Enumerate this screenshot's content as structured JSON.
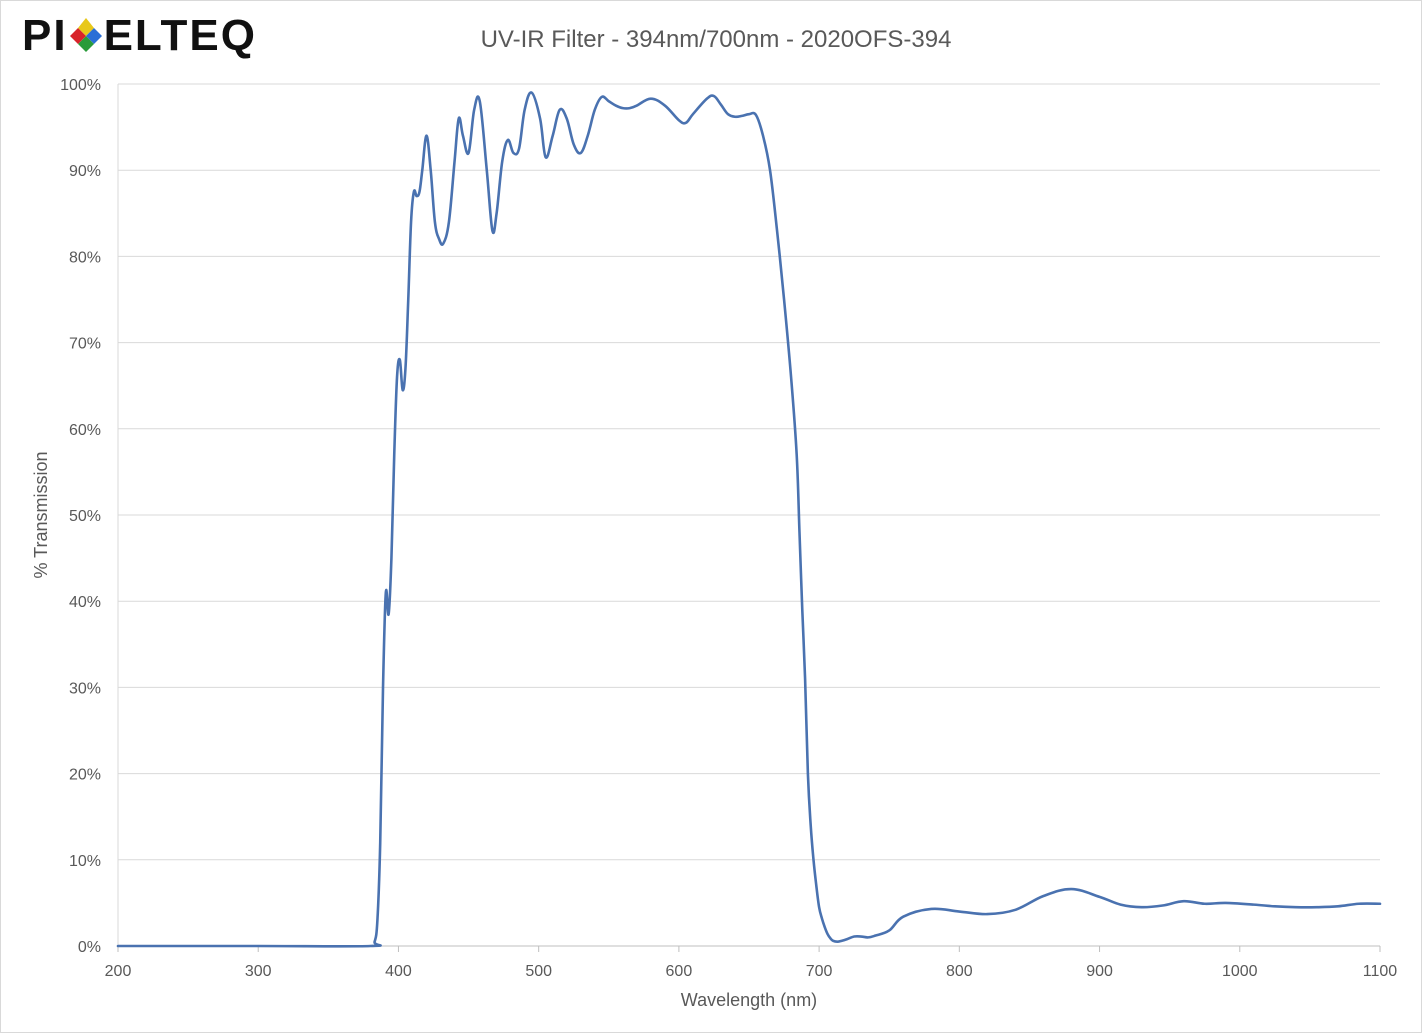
{
  "logo": {
    "brand": "PIXELTEQ",
    "part1": "PI",
    "part3": "ELTEQ"
  },
  "colors": {
    "series": "#4a72b0",
    "grid": "#d9d9d9",
    "text": "#595959"
  },
  "chart_data": {
    "type": "line",
    "title": "UV-IR Filter - 394nm/700nm - 2020OFS-394",
    "xlabel": "Wavelength (nm)",
    "ylabel": "% Transmission",
    "xlim": [
      200,
      1100
    ],
    "ylim": [
      0,
      100
    ],
    "x_ticks": [
      200,
      300,
      400,
      500,
      600,
      700,
      800,
      900,
      1000,
      1100
    ],
    "y_ticks": [
      0,
      10,
      20,
      30,
      40,
      50,
      60,
      70,
      80,
      90,
      100
    ],
    "y_tick_labels": [
      "0%",
      "10%",
      "20%",
      "30%",
      "40%",
      "50%",
      "60%",
      "70%",
      "80%",
      "90%",
      "100%"
    ],
    "grid": true,
    "legend": "none",
    "series": [
      {
        "x": [
          200,
          300,
          380,
          383,
          385,
          387,
          389,
          391,
          393,
          395,
          397,
          399,
          401,
          403,
          405,
          407,
          409,
          411,
          413,
          415,
          417,
          420,
          423,
          426,
          429,
          432,
          436,
          440,
          443,
          446,
          450,
          454,
          458,
          463,
          467,
          470,
          474,
          478,
          482,
          486,
          490,
          495,
          501,
          505,
          510,
          515,
          520,
          525,
          530,
          535,
          540,
          545,
          550,
          555,
          560,
          565,
          570,
          580,
          590,
          600,
          605,
          610,
          620,
          625,
          630,
          635,
          640,
          645,
          650,
          655,
          660,
          665,
          670,
          675,
          680,
          684,
          686,
          688,
          690,
          692,
          694,
          696,
          698,
          700,
          702,
          704,
          706,
          708,
          710,
          713,
          716,
          720,
          725,
          730,
          735,
          740,
          750,
          760,
          780,
          800,
          820,
          840,
          860,
          880,
          900,
          915,
          930,
          945,
          960,
          975,
          990,
          1010,
          1025,
          1040,
          1055,
          1070,
          1085,
          1100
        ],
        "y": [
          0,
          0,
          0,
          0.5,
          3,
          12,
          30,
          41,
          38.5,
          45,
          57,
          66,
          68,
          64.5,
          67,
          75,
          84,
          87.5,
          87,
          87.5,
          90,
          94,
          90,
          84,
          82,
          81.5,
          84,
          91,
          96,
          94,
          92,
          97,
          98,
          90,
          83,
          85,
          91,
          93.5,
          92,
          92.5,
          97,
          99,
          96,
          91.5,
          94,
          97,
          96,
          93,
          92,
          94,
          97,
          98.5,
          98,
          97.5,
          97.2,
          97.2,
          97.5,
          98.3,
          97.5,
          95.8,
          95.5,
          96.5,
          98.3,
          98.6,
          97.6,
          96.5,
          96.2,
          96.3,
          96.5,
          96.4,
          94,
          90,
          83,
          75,
          66,
          57,
          48,
          39,
          31,
          20,
          14,
          10,
          7,
          4.5,
          3.2,
          2.2,
          1.4,
          0.9,
          0.6,
          0.5,
          0.6,
          0.8,
          1.1,
          1.1,
          1,
          1.2,
          1.8,
          3.4,
          4.3,
          4,
          3.7,
          4.2,
          5.8,
          6.6,
          5.7,
          4.8,
          4.5,
          4.7,
          5.2,
          4.9,
          5,
          4.8,
          4.6,
          4.5,
          4.5,
          4.6,
          4.9,
          4.9
        ]
      }
    ]
  }
}
